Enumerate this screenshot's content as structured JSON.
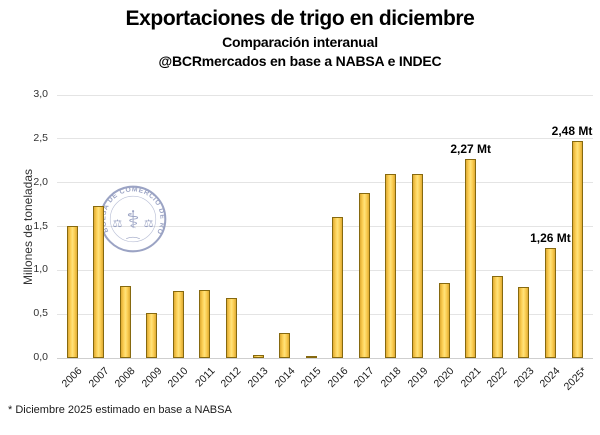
{
  "header": {
    "title": "Exportaciones de trigo en diciembre",
    "subtitle": "Comparación interanual",
    "byline": "@BCRmercados en base a NABSA e INDEC"
  },
  "chart_data": {
    "type": "bar",
    "title": "Exportaciones de trigo en diciembre",
    "subtitle": "Comparación interanual",
    "source_line": "@BCRmercados en base a NABSA e INDEC",
    "xlabel": "",
    "ylabel": "Millones de toneladas",
    "ylim": [
      0,
      3
    ],
    "grid": true,
    "yticks": [
      {
        "value": 0.0,
        "label": "0,0"
      },
      {
        "value": 0.5,
        "label": "0,5"
      },
      {
        "value": 1.0,
        "label": "1,0"
      },
      {
        "value": 1.5,
        "label": "1,5"
      },
      {
        "value": 2.0,
        "label": "2,0"
      },
      {
        "value": 2.5,
        "label": "2,5"
      },
      {
        "value": 3.0,
        "label": "3,0"
      }
    ],
    "categories": [
      "2006",
      "2007",
      "2008",
      "2009",
      "2010",
      "2011",
      "2012",
      "2013",
      "2014",
      "2015",
      "2016",
      "2017",
      "2018",
      "2019",
      "2020",
      "2021",
      "2022",
      "2023",
      "2024",
      "2025*"
    ],
    "values": [
      1.51,
      1.73,
      0.82,
      0.51,
      0.76,
      0.78,
      0.68,
      0.03,
      0.29,
      0.02,
      1.61,
      1.88,
      2.1,
      2.1,
      0.85,
      2.27,
      0.93,
      0.81,
      1.26,
      2.48
    ],
    "unit": "Mt",
    "annotations": [
      {
        "index": 15,
        "category": "2021",
        "text": "2,27 Mt"
      },
      {
        "index": 18,
        "category": "2024",
        "text": "1,26 Mt"
      },
      {
        "index": 19,
        "category": "2025*",
        "text": "2,48 Mt"
      }
    ],
    "colors": {
      "bar_fill": "#FCCF54",
      "bar_border": "#86690F",
      "gridline": "#E4E4E4",
      "text": "#000000",
      "watermark": "#8A94BA"
    }
  },
  "watermark": {
    "ring_text": "BOLSA DE COMERCIO DE ROSARIO",
    "caduceus_icon": "⚕",
    "scale_icon": "⚖"
  },
  "footnote": "* Diciembre 2025 estimado en base a NABSA"
}
